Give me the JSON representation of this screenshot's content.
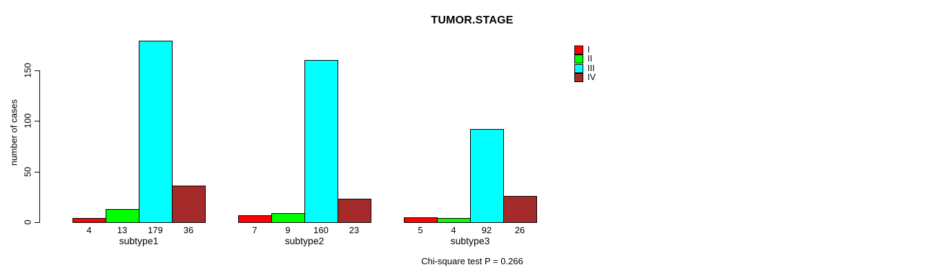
{
  "title": "TUMOR.STAGE",
  "footnote": "Chi-square test P = 0.266",
  "colors": {
    "stage_I": "#FF0000",
    "stage_II": "#00FF00",
    "stage_III": "#00FFFF",
    "stage_IV": "#A52A2A",
    "axis": "#000000",
    "background": "#FFFFFF"
  },
  "chart_data": {
    "type": "bar",
    "title": "TUMOR.STAGE",
    "xlabel": "",
    "ylabel": "number of cases",
    "categories": [
      "subtype1",
      "subtype2",
      "subtype3"
    ],
    "series": [
      {
        "name": "I",
        "color": "#FF0000",
        "values": [
          4,
          7,
          5
        ]
      },
      {
        "name": "II",
        "color": "#00FF00",
        "values": [
          13,
          9,
          4
        ]
      },
      {
        "name": "III",
        "color": "#00FFFF",
        "values": [
          179,
          160,
          92
        ]
      },
      {
        "name": "IV",
        "color": "#A52A2A",
        "values": [
          36,
          23,
          26
        ]
      }
    ],
    "bar_value_labels": [
      [
        4,
        13,
        179,
        36
      ],
      [
        7,
        9,
        160,
        23
      ],
      [
        5,
        4,
        92,
        26
      ]
    ],
    "yticks": [
      0,
      50,
      100,
      150
    ],
    "ylim": [
      0,
      183
    ],
    "grid": false,
    "legend_position": "top-right",
    "annotation": "Chi-square test P = 0.266"
  }
}
